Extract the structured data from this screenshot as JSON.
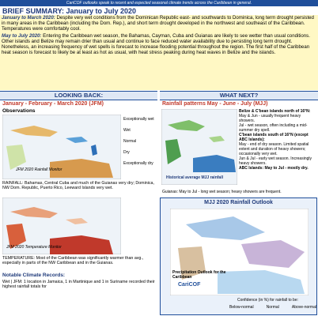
{
  "banner": "CariCOF outlooks speak to recent and expected seasonal climate trends across the Caribbean in general.",
  "summary": {
    "title": "BRIEF SUMMARY: January to July 2020",
    "paragraphs": [
      {
        "lead": "January to March 2020:",
        "text": " Despite very wet conditions from the Dominican Republic east- and southwards to Dominica, long term drought persisted in many areas in the Caribbean (including the Dom. Rep.), and short term drought developed in the northwest and southeast of the Caribbean. Temperatures were comfortably cool."
      },
      {
        "lead": "May to July 2020:",
        "text": " Entering the Caribbean wet season, the Bahamas, Cayman, Cuba and Guianas are likely to see wetter than usual conditions. Other islands and Belize may remain drier than usual and continue to face reduced water availability due to persisting long term drought. Nonetheless, an increasing frequency of wet spells is forecast to increase flooding potential throughout the region. The first half of the Caribbean heat season is forecast to likely be at least as hot as usual, with heat stress peaking during heat waves in Belize and the islands."
      }
    ]
  },
  "left": {
    "header": "LOOKING BACK:",
    "subtitle": "January - February - March 2020 (JFM)",
    "section": "Observations",
    "rain_map": {
      "caption": "JFM 2020 Rainfall Monitor",
      "legend": [
        "Exceptionally wet",
        "Wet",
        "Normal",
        "Dry",
        "Exceptionally dry"
      ]
    },
    "rain_note": "RAINFALL: Bahamas, Central Cuba and much of the Guianas very dry; Dominica, NW Dom. Republic, Puerto Rico, Leeward Islands very wet.",
    "temp_map": {
      "caption": "JFM 2020 Temperature Monitor"
    },
    "temp_note": "TEMPERATURE: Most of the Caribbean was significantly warmer than avg., especially in parts of the NW Caribbean and in the Guianas.",
    "records_title": "Notable Climate Records:",
    "records": "Wet | JFM: 1 location in Jamaica, 1 in Martinique and 1 in Suriname recorded their highest rainfall totals for"
  },
  "right": {
    "header": "WHAT NEXT?",
    "subtitle": "Rainfall patterns May - June - July (MJJ)",
    "map_caption": "Historical average MJJ rainfall",
    "notes": [
      "Belize & C'bean islands north of 16°N:",
      "May & Jun - usually frequent heavy showers.",
      "Jul - wet season, often including a mid-summer dry spell.",
      "C'bean islands south of 16°N (except ABC Islands):",
      "May - end of dry season. Limited spatial extent and duration of heavy showers; occasionally very wet.",
      "Jun & Jul - early wet season. Increasingly heavy showers.",
      "ABC Islands: May to Jul - mostly dry."
    ],
    "guianas": "Guianas: May to Jul - long wet season; heavy showers are frequent.",
    "outlook": {
      "title": "MJJ 2020 Rainfall Outlook",
      "map_title": "Precipitation Outlook for the Caribbean",
      "logo": "CariCOF",
      "confidence": "Confidence (in %) for rainfall to be:",
      "classes": [
        "Below-normal",
        "Normal",
        "Above-normal"
      ]
    }
  }
}
